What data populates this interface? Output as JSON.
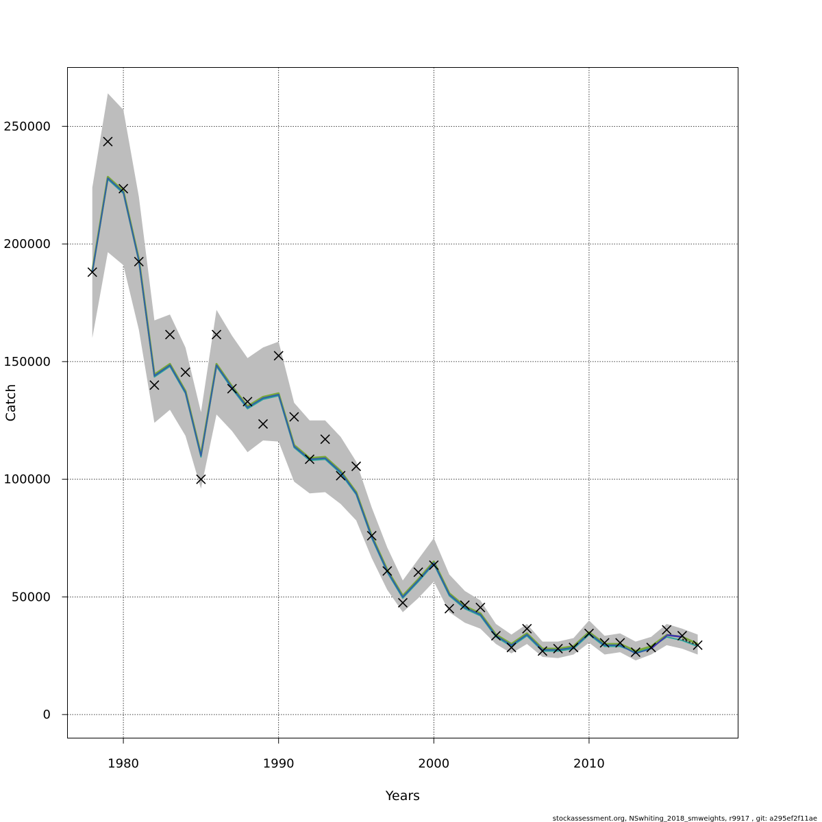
{
  "chart_data": {
    "type": "line",
    "title": "",
    "xlabel": "Years",
    "ylabel": "Catch",
    "xlim": [
      1976.4,
      2019.6
    ],
    "ylim": [
      -10000,
      275000
    ],
    "x_ticks": [
      1980,
      1990,
      2000,
      2010
    ],
    "y_ticks": [
      0,
      50000,
      100000,
      150000,
      200000,
      250000
    ],
    "x_tick_labels": [
      "1980",
      "1990",
      "2000",
      "2010"
    ],
    "y_tick_labels": [
      "0",
      "50000",
      "100000",
      "150000",
      "200000",
      "250000"
    ],
    "grid": true,
    "colors": {
      "band": "#bdbdbd",
      "fit": "#7aa83a",
      "retro1": "#2f5fa8",
      "retro2": "#2aa39a",
      "retro3": "#3f33b0",
      "tail": "#333333",
      "observed": "#000000"
    },
    "years": [
      1978,
      1979,
      1980,
      1981,
      1982,
      1983,
      1984,
      1985,
      1986,
      1987,
      1988,
      1989,
      1990,
      1991,
      1992,
      1993,
      1994,
      1995,
      1996,
      1997,
      1998,
      1999,
      2000,
      2001,
      2002,
      2003,
      2004,
      2005,
      2006,
      2007,
      2008,
      2009,
      2010,
      2011,
      2012,
      2013,
      2014,
      2015,
      2016,
      2017
    ],
    "band_upper": [
      224000,
      264000,
      257000,
      220000,
      167500,
      170000,
      156000,
      128500,
      172000,
      161000,
      151500,
      156000,
      158500,
      132500,
      125000,
      125000,
      118000,
      107500,
      88000,
      71000,
      57000,
      66000,
      75000,
      59500,
      52500,
      48500,
      38500,
      34000,
      38500,
      31000,
      31000,
      32500,
      40000,
      33500,
      34500,
      31000,
      33000,
      38500,
      36500,
      34000
    ],
    "band_lower": [
      160000,
      196500,
      191000,
      163500,
      124000,
      129500,
      118500,
      96000,
      127500,
      120500,
      111500,
      116500,
      116000,
      99000,
      94000,
      94500,
      89500,
      82500,
      66500,
      53000,
      43500,
      49500,
      56500,
      43500,
      39000,
      36500,
      30000,
      26000,
      30000,
      24500,
      24000,
      25500,
      30500,
      25500,
      26500,
      23000,
      25500,
      29500,
      28000,
      25500
    ],
    "series": [
      {
        "values": [
          188000,
          228000,
          222000,
          193000,
          144000,
          148500,
          137000,
          110000,
          148500,
          139000,
          130500,
          134500,
          136000,
          114000,
          108500,
          109000,
          103000,
          94000,
          75500,
          61000,
          50000,
          57000,
          64500,
          51000,
          45500,
          42500,
          33500,
          29500,
          34000,
          27500,
          27500,
          28500,
          34500,
          29500,
          29500,
          26000,
          28000,
          33500,
          32000,
          29500
        ]
      },
      {
        "values": [
          188000,
          227500,
          221500,
          192500,
          143500,
          148000,
          136500,
          109500,
          148000,
          138500,
          130000,
          134000,
          135500,
          113500,
          108000,
          108500,
          102500,
          93500,
          75000,
          60500,
          49500,
          56500,
          64000,
          50500,
          45000,
          42000,
          33000,
          29000,
          33500,
          27000,
          27000,
          28000,
          34000,
          29000,
          29000,
          26500,
          28500,
          33000,
          31500,
          29000
        ]
      },
      {
        "values": [
          188500,
          228500,
          222500,
          193500,
          144500,
          149000,
          137500,
          110500,
          149000,
          139500,
          131000,
          135000,
          136500,
          114500,
          109000,
          109500,
          103500,
          94500,
          76000,
          61500,
          50500,
          57500,
          65000,
          51500,
          46000,
          43000,
          34000,
          30000,
          34500,
          28000,
          28000,
          29000,
          35000,
          30000,
          30000,
          27000,
          29000,
          33800,
          33000,
          30000
        ]
      }
    ],
    "observed": [
      188000,
      243500,
      223500,
      192500,
      140000,
      161500,
      145500,
      100000,
      161500,
      138500,
      133000,
      123500,
      152500,
      126500,
      108500,
      117000,
      101500,
      105500,
      76000,
      61000,
      47500,
      60500,
      63500,
      45000,
      46500,
      45500,
      33500,
      28500,
      36500,
      27000,
      28000,
      28500,
      34500,
      30500,
      30500,
      26500,
      28500,
      36000,
      33500,
      29500
    ]
  },
  "footer": "stockassessment.org, NSwhiting_2018_smweights, r9917 , git: a295ef2f11ae"
}
